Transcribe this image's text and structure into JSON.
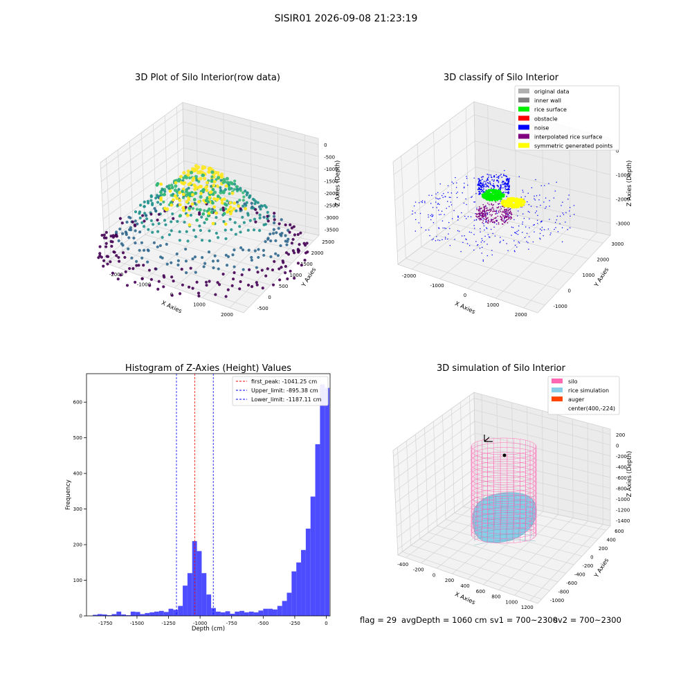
{
  "suptitle": "SISIR01 2026-09-08 21:23:19",
  "status_bar": {
    "flag": "flag = 29",
    "avg_depth": "avgDepth = 1060 cm",
    "sv1": "sv1 = 700~2300",
    "sv2": "sv2 = 700~2300"
  },
  "chart_data": [
    {
      "type": "scatter3d",
      "title": "3D Plot of Silo Interior(row data)",
      "xlabel": "X Axies",
      "ylabel": "Y Axies",
      "zlabel": "Z Axies (Depth)",
      "xticks": [
        -2000,
        -1000,
        0,
        1000,
        2000
      ],
      "yticks": [
        -500,
        0,
        500,
        1000,
        1500,
        2000,
        2500
      ],
      "zticks": [
        0,
        -500,
        -1000,
        -1500,
        -2000,
        -2500,
        -3000,
        -3500
      ],
      "colormap": [
        "#440154",
        "#31688e",
        "#21918c",
        "#35b779",
        "#fde725"
      ]
    },
    {
      "type": "scatter3d",
      "title": "3D classify of Silo Interior",
      "xlabel": "X Axies",
      "ylabel": "Y Axies",
      "zlabel": "Z Axies (Depth)",
      "xticks": [
        -2000,
        -1000,
        0,
        1000,
        2000
      ],
      "yticks": [
        -1000,
        0,
        1000,
        2000,
        3000
      ],
      "zticks": [
        0,
        -1000,
        -2000,
        -3000
      ],
      "legend": [
        {
          "label": "original data",
          "color": "#b0b0b0"
        },
        {
          "label": "inner wall",
          "color": "#808080"
        },
        {
          "label": "rice surface",
          "color": "#00ee00"
        },
        {
          "label": "obstacle",
          "color": "#ff0000"
        },
        {
          "label": "noise",
          "color": "#0000ff"
        },
        {
          "label": "interpolated rice surface",
          "color": "#800080"
        },
        {
          "label": "symmetric generated points",
          "color": "#ffff00"
        }
      ]
    },
    {
      "type": "bar",
      "title": "Histogram of Z-Axies (Height) Values",
      "xlabel": "Depth (cm)",
      "ylabel": "Frequency",
      "xlim": [
        -1900,
        30
      ],
      "ylim": [
        0,
        680
      ],
      "xticks": [
        -1750,
        -1500,
        -1250,
        -1000,
        -750,
        -500,
        -250,
        0
      ],
      "yticks": [
        0,
        100,
        200,
        300,
        400,
        500,
        600
      ],
      "bar_color": "#4d4dff",
      "bin_width": 37.5,
      "bins_start": [
        -1850,
        -1812.5,
        -1775,
        -1737.5,
        -1700,
        -1662.5,
        -1625,
        -1587.5,
        -1550,
        -1512.5,
        -1475,
        -1437.5,
        -1400,
        -1362.5,
        -1325,
        -1287.5,
        -1250,
        -1212.5,
        -1175,
        -1137.5,
        -1100,
        -1062.5,
        -1025,
        -987.5,
        -950,
        -912.5,
        -875,
        -837.5,
        -800,
        -762.5,
        -725,
        -687.5,
        -650,
        -612.5,
        -575,
        -537.5,
        -500,
        -462.5,
        -425,
        -387.5,
        -350,
        -312.5,
        -275,
        -237.5,
        -200,
        -162.5,
        -125,
        -87.5,
        -50,
        -12.5
      ],
      "counts": [
        3,
        5,
        4,
        2,
        5,
        12,
        4,
        2,
        12,
        11,
        5,
        8,
        10,
        12,
        14,
        11,
        20,
        17,
        28,
        85,
        120,
        210,
        182,
        120,
        60,
        22,
        12,
        10,
        13,
        6,
        12,
        14,
        10,
        12,
        10,
        15,
        20,
        20,
        18,
        28,
        42,
        65,
        125,
        150,
        185,
        245,
        335,
        482,
        650,
        640
      ],
      "lines": [
        {
          "label": "first_peak: -1041.25 cm",
          "x": -1041.25,
          "color": "#ff0000"
        },
        {
          "label": "Upper_limit: -895.38 cm",
          "x": -895.38,
          "color": "#0000ff"
        },
        {
          "label": "Lower_limit: -1187.11 cm",
          "x": -1187.11,
          "color": "#0000ff"
        }
      ]
    },
    {
      "type": "surface3d",
      "title": "3D simulation of Silo Interior",
      "xlabel": "X Axies",
      "ylabel": "Y Axies",
      "zlabel": "Z Axies (Depth)",
      "xticks": [
        -400,
        -200,
        0,
        200,
        400,
        600,
        800,
        1000,
        1200
      ],
      "yticks": [
        -1000,
        -800,
        -600,
        -400,
        -200,
        0,
        200,
        400,
        600
      ],
      "zticks": [
        200,
        0,
        -200,
        -400,
        -600,
        -800,
        -1000,
        -1200,
        -1400
      ],
      "legend": [
        {
          "label": "silo",
          "color": "#ff69b4"
        },
        {
          "label": "rice simulation",
          "color": "#87cee6"
        },
        {
          "label": "auger",
          "color": "#ff4500"
        },
        {
          "label": "center(400,-224)",
          "color": ""
        }
      ]
    }
  ]
}
